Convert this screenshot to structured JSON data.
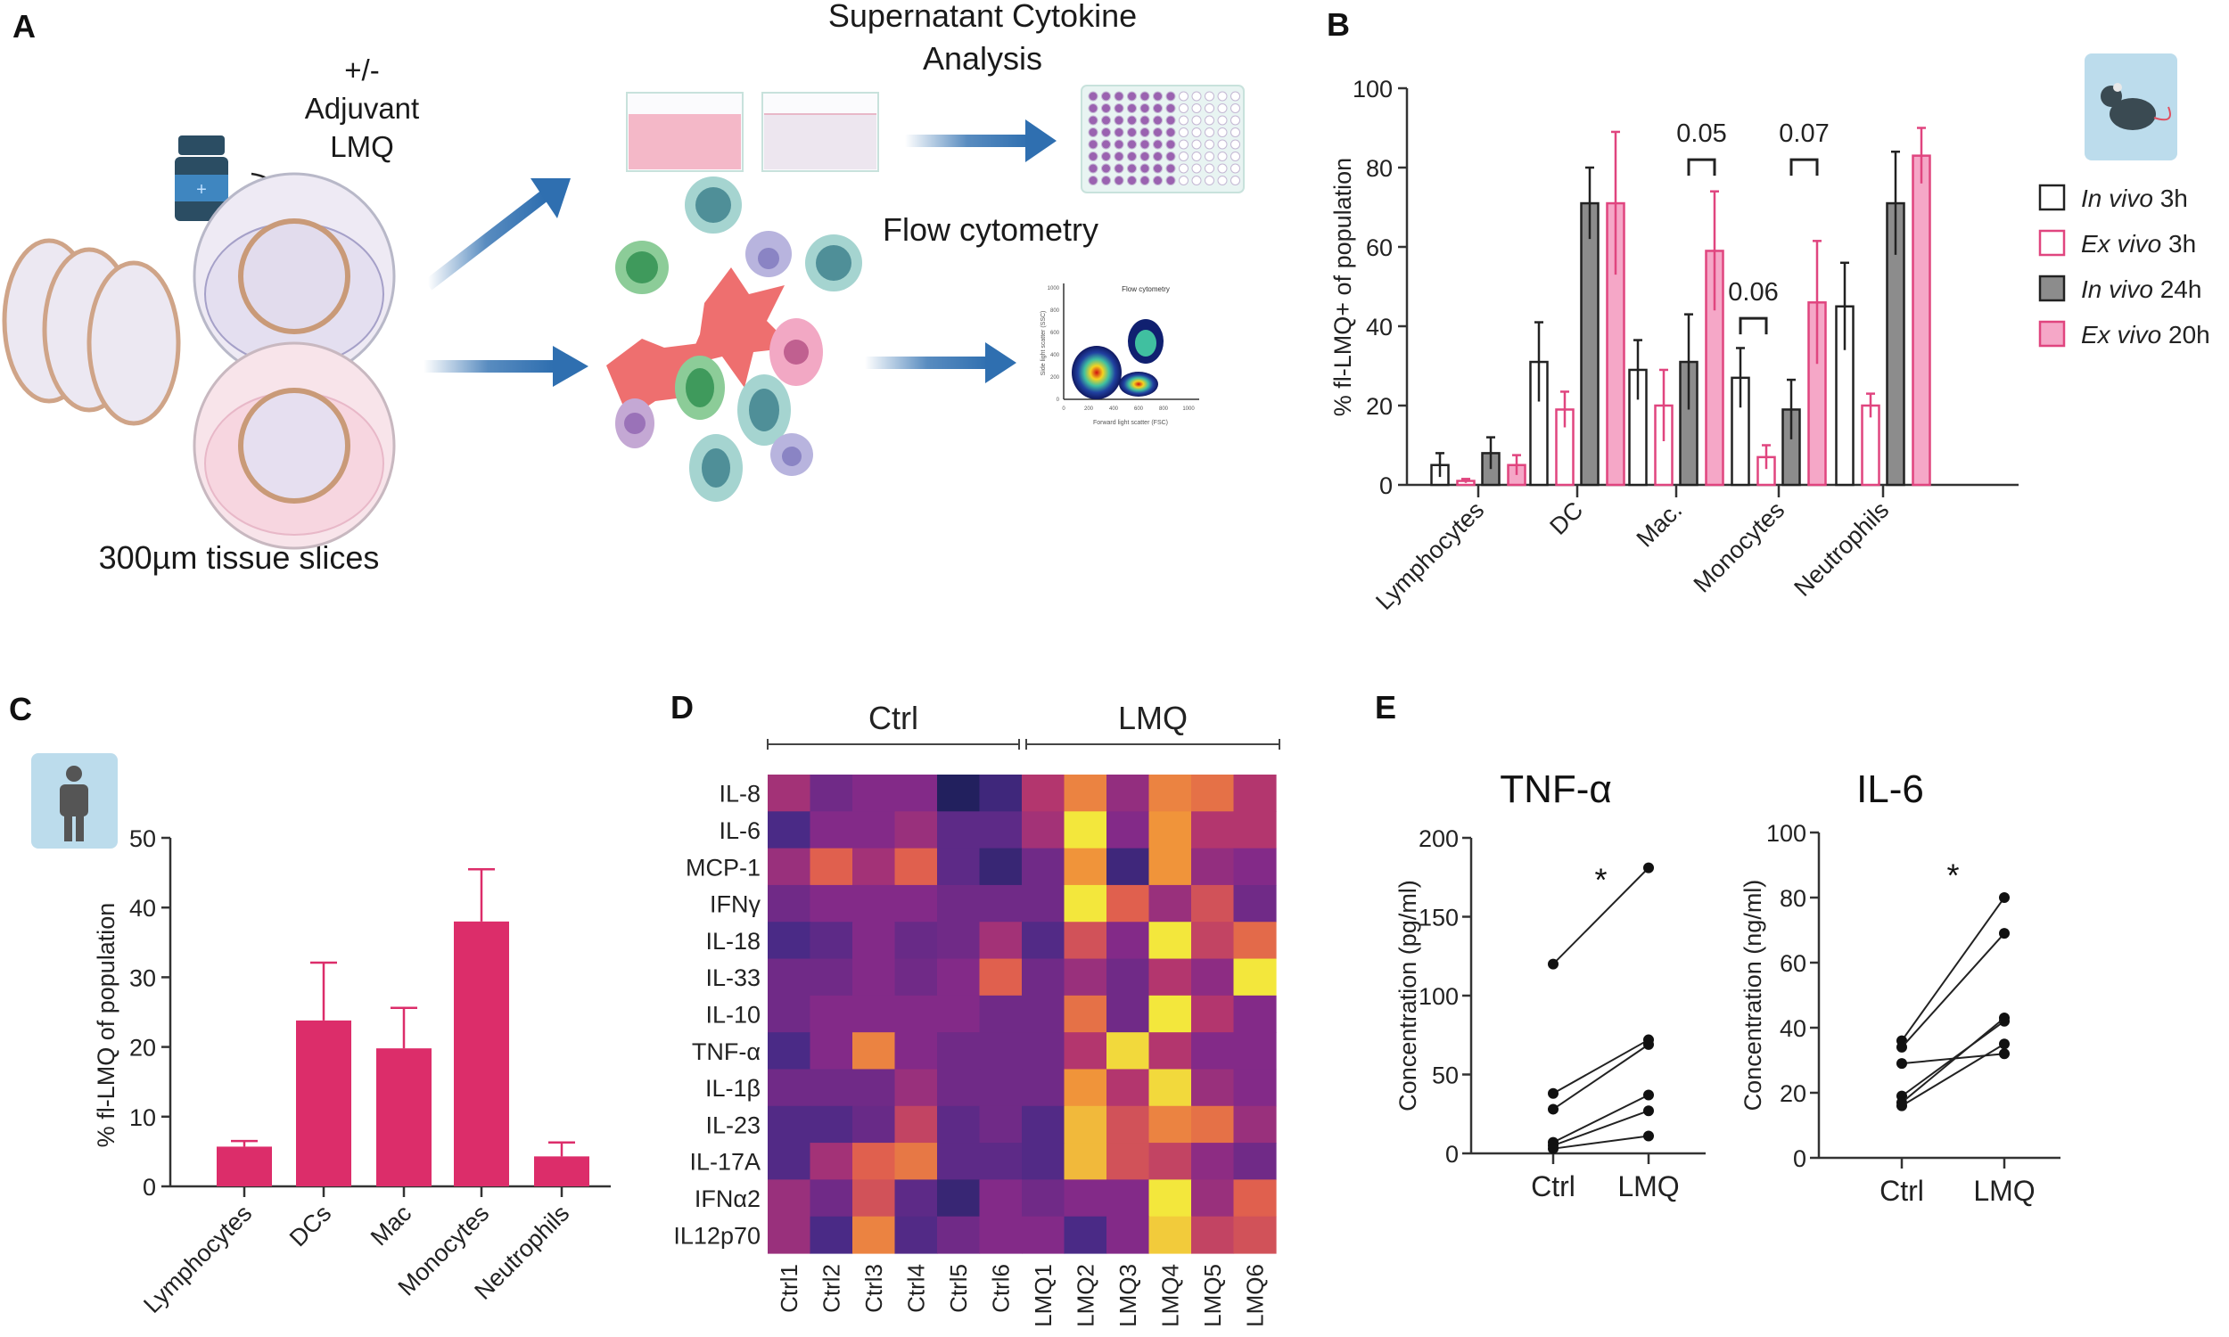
{
  "panels": {
    "a": "A",
    "b": "B",
    "c": "C",
    "d": "D",
    "e": "E"
  },
  "schematic": {
    "treatment_lines": [
      "+/-",
      "Adjuvant",
      "LMQ"
    ],
    "cytokine_lines": [
      "Supernatant Cytokine",
      "Analysis"
    ],
    "flow_label": "Flow cytometry",
    "slices_label": "300µm tissue slices",
    "mini_plot": {
      "title": "Flow cytometry",
      "xlabel": "Forward light scatter (FSC)",
      "ylabel": "Side light scatter (SSC)",
      "ticks": [
        "0",
        "200",
        "400",
        "600",
        "800",
        "1000"
      ]
    },
    "icons": [
      "vial-icon",
      "petri-dish-icon",
      "tissue-slice-icon",
      "well-icon",
      "well-plate-icon",
      "immune-cells-icon",
      "arrow-icon"
    ],
    "colors": {
      "arrow": "#2f6fb0",
      "medium_pink": "#f4b8c8",
      "plate_dots": "#9a62b0"
    }
  },
  "chart_data": [
    {
      "id": "B",
      "type": "bar",
      "ylabel": "% fl-LMQ+ of population",
      "ylim": [
        0,
        100
      ],
      "yticks": [
        "0",
        "20",
        "40",
        "60",
        "80",
        "100"
      ],
      "categories": [
        "Lymphocytes",
        "DC",
        "Mac.",
        "Monocytes",
        "Neutrophils"
      ],
      "legend_placement": "right",
      "icon": "mouse-icon",
      "series": [
        {
          "name": "In vivo 3h",
          "name_italic": "In vivo",
          "name_rest": " 3h",
          "fill": "#ffffff",
          "stroke": "#222222",
          "values": [
            5,
            31,
            29,
            27,
            45
          ],
          "errors": [
            3,
            10,
            7.5,
            7.5,
            11
          ]
        },
        {
          "name": "Ex vivo 3h",
          "name_italic": "Ex vivo",
          "name_rest": " 3h",
          "fill": "#ffffff",
          "stroke": "#e0457f",
          "values": [
            1,
            19,
            20,
            7,
            20
          ],
          "errors": [
            0.5,
            4.5,
            9,
            3,
            3
          ]
        },
        {
          "name": "In vivo 24h",
          "name_italic": "In vivo",
          "name_rest": " 24h",
          "fill": "#8c8c8c",
          "stroke": "#222222",
          "values": [
            8,
            71,
            31,
            19,
            71
          ],
          "errors": [
            4,
            9,
            12,
            7.5,
            13
          ]
        },
        {
          "name": "Ex vivo 20h",
          "name_italic": "Ex vivo",
          "name_rest": " 20h",
          "fill": "#f5a7c7",
          "stroke": "#e0457f",
          "values": [
            5,
            71,
            59,
            46,
            83
          ],
          "errors": [
            2.5,
            18,
            15,
            15.5,
            7
          ]
        }
      ],
      "annotations": [
        {
          "text": "0.05",
          "category": "Mac.",
          "series_from": 2,
          "series_to": 3,
          "y": 82
        },
        {
          "text": "0.07",
          "category": "Monocytes",
          "series_from": 2,
          "series_to": 3,
          "y": 82
        },
        {
          "text": "0.06",
          "category": "Monocytes",
          "series_from": 0,
          "series_to": 1,
          "y": 42
        }
      ]
    },
    {
      "id": "C",
      "type": "bar",
      "ylabel": "% fl-LMQ of population",
      "ylim": [
        0,
        50
      ],
      "yticks": [
        "0",
        "10",
        "20",
        "30",
        "40",
        "50"
      ],
      "categories": [
        "Lymphocytes",
        "DCs",
        "Mac",
        "Monocytes",
        "Neutrophils"
      ],
      "values": [
        5.7,
        23.8,
        19.8,
        38,
        4.3
      ],
      "errors": [
        0.8,
        8.3,
        5.8,
        7.5,
        2
      ],
      "color": "#dc2d6a",
      "icon": "human-icon"
    },
    {
      "id": "D",
      "type": "heatmap",
      "group_labels": [
        "Ctrl",
        "LMQ"
      ],
      "columns": [
        "Ctrl1",
        "Ctrl2",
        "Ctrl3",
        "Ctrl4",
        "Ctrl5",
        "Ctrl6",
        "LMQ1",
        "LMQ2",
        "LMQ3",
        "LMQ4",
        "LMQ5",
        "LMQ6"
      ],
      "rows": [
        "IL-8",
        "IL-6",
        "MCP-1",
        "IFNγ",
        "IL-18",
        "IL-33",
        "IL-10",
        "TNF-α",
        "IL-1β",
        "IL-23",
        "IL-17A",
        "IFNα2",
        "IL12p70"
      ],
      "colormap": "plasma",
      "values": [
        [
          0.45,
          0.3,
          0.35,
          0.35,
          0.02,
          0.15,
          0.5,
          0.75,
          0.4,
          0.75,
          0.7,
          0.5
        ],
        [
          0.2,
          0.35,
          0.35,
          0.42,
          0.25,
          0.25,
          0.45,
          0.98,
          0.35,
          0.8,
          0.5,
          0.5
        ],
        [
          0.42,
          0.65,
          0.45,
          0.65,
          0.25,
          0.12,
          0.3,
          0.8,
          0.15,
          0.8,
          0.4,
          0.35
        ],
        [
          0.3,
          0.35,
          0.35,
          0.35,
          0.3,
          0.3,
          0.3,
          0.98,
          0.65,
          0.42,
          0.6,
          0.3
        ],
        [
          0.2,
          0.25,
          0.35,
          0.28,
          0.3,
          0.45,
          0.22,
          0.6,
          0.35,
          0.98,
          0.55,
          0.68
        ],
        [
          0.3,
          0.3,
          0.35,
          0.3,
          0.35,
          0.65,
          0.3,
          0.42,
          0.3,
          0.5,
          0.38,
          0.98
        ],
        [
          0.3,
          0.35,
          0.35,
          0.35,
          0.35,
          0.3,
          0.3,
          0.7,
          0.3,
          0.98,
          0.5,
          0.35
        ],
        [
          0.2,
          0.35,
          0.75,
          0.35,
          0.3,
          0.3,
          0.3,
          0.5,
          0.95,
          0.5,
          0.35,
          0.35
        ],
        [
          0.3,
          0.3,
          0.3,
          0.42,
          0.3,
          0.3,
          0.3,
          0.8,
          0.5,
          0.95,
          0.42,
          0.35
        ],
        [
          0.22,
          0.22,
          0.28,
          0.55,
          0.25,
          0.3,
          0.22,
          0.88,
          0.6,
          0.75,
          0.7,
          0.42
        ],
        [
          0.22,
          0.45,
          0.65,
          0.72,
          0.25,
          0.25,
          0.22,
          0.88,
          0.6,
          0.55,
          0.38,
          0.3
        ],
        [
          0.42,
          0.3,
          0.6,
          0.25,
          0.12,
          0.35,
          0.3,
          0.35,
          0.35,
          0.98,
          0.42,
          0.65
        ],
        [
          0.42,
          0.2,
          0.75,
          0.22,
          0.3,
          0.35,
          0.35,
          0.2,
          0.35,
          0.92,
          0.55,
          0.6
        ]
      ]
    },
    {
      "id": "E1",
      "type": "line",
      "title": "TNF-α",
      "ylabel": "Concentration (pg/ml)",
      "ylim": [
        0,
        200
      ],
      "yticks": [
        "0",
        "50",
        "100",
        "150",
        "200"
      ],
      "categories": [
        "Ctrl",
        "LMQ"
      ],
      "significance": "*",
      "pairs": [
        [
          120,
          181
        ],
        [
          38,
          72
        ],
        [
          28,
          69
        ],
        [
          7,
          37
        ],
        [
          5,
          27
        ],
        [
          3,
          11
        ]
      ]
    },
    {
      "id": "E2",
      "type": "line",
      "title": "IL-6",
      "ylabel": "Concentration (ng/ml)",
      "ylim": [
        0,
        100
      ],
      "yticks": [
        "0",
        "20",
        "40",
        "60",
        "80",
        "100"
      ],
      "categories": [
        "Ctrl",
        "LMQ"
      ],
      "significance": "*",
      "pairs": [
        [
          36,
          80
        ],
        [
          34,
          69
        ],
        [
          29,
          32
        ],
        [
          19,
          42
        ],
        [
          17,
          43
        ],
        [
          16,
          35
        ]
      ]
    }
  ]
}
